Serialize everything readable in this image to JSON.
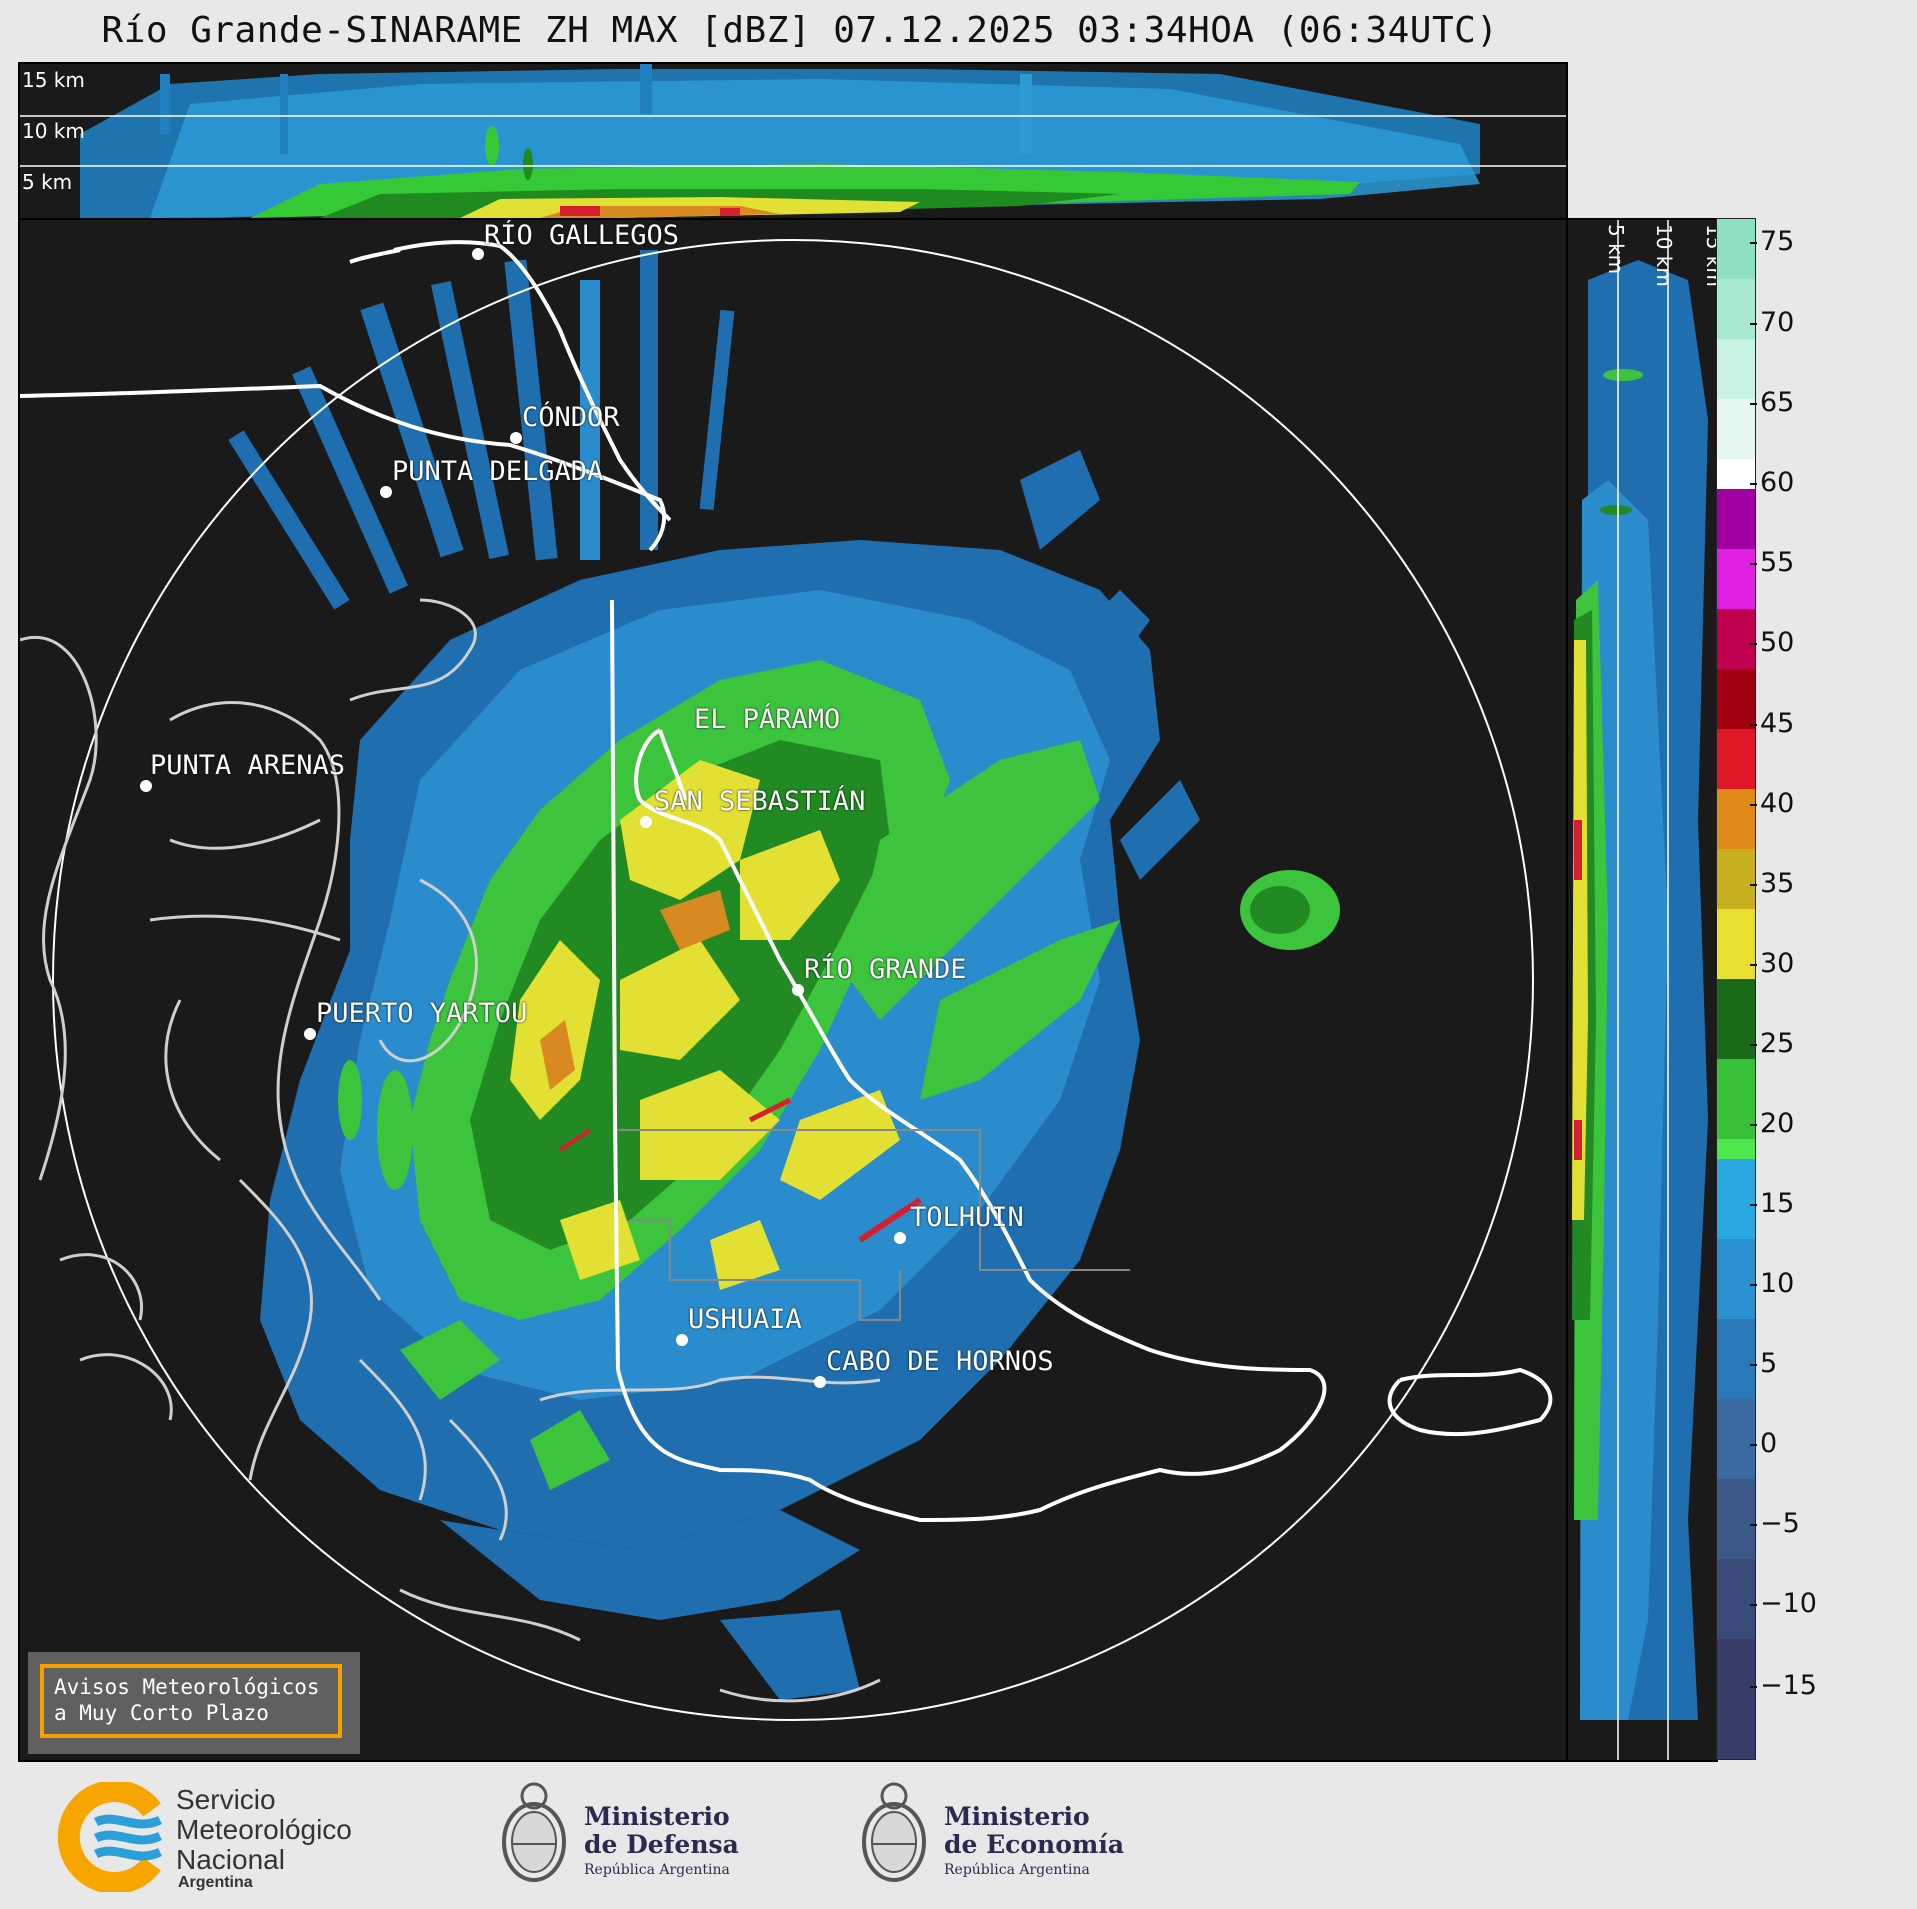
{
  "title": "Río Grande-SINARAME ZH MAX [dBZ] 07.12.2025 03:34HOA (06:34UTC)",
  "top_panel": {
    "km_labels": [
      "15 km",
      "10 km",
      "5 km"
    ]
  },
  "side_panel": {
    "km_labels": [
      "5 km",
      "10 km",
      "15 km"
    ]
  },
  "colorbar": {
    "ticks": [
      "75",
      "70",
      "65",
      "60",
      "55",
      "50",
      "45",
      "40",
      "35",
      "30",
      "25",
      "20",
      "15",
      "10",
      "5",
      "0",
      "−5",
      "−10",
      "−15"
    ]
  },
  "cities": {
    "rio_gallegos": "RÍO GALLEGOS",
    "condor": "CÓNDOR",
    "punta_delgada": "PUNTA DELGADA",
    "punta_arenas": "PUNTA ARENAS",
    "el_paramo": "EL PÁRAMO",
    "san_sebastian": "SAN SEBASTIÁN",
    "rio_grande": "RÍO GRANDE",
    "puerto_yartou": "PUERTO YARTOU",
    "tolhuin": "TOLHUIN",
    "ushuaia": "USHUAIA",
    "cabo_de_hornos": "CABO DE HORNOS"
  },
  "warning": {
    "line1": "Avisos Meteorológicos",
    "line2": "a Muy Corto Plazo"
  },
  "logos": {
    "smn_line1": "Servicio",
    "smn_line2": "Meteorológico",
    "smn_line3": "Nacional",
    "smn_line4": "Argentina",
    "defensa_line1": "Ministerio",
    "defensa_line2": "de Defensa",
    "defensa_line3": "República Argentina",
    "economia_line1": "Ministerio",
    "economia_line2": "de Economía",
    "economia_line3": "República Argentina"
  },
  "colors": {
    "orange": "#f5a000",
    "smn_blue": "#2b9fd9",
    "smn_orange": "#f7a600"
  }
}
